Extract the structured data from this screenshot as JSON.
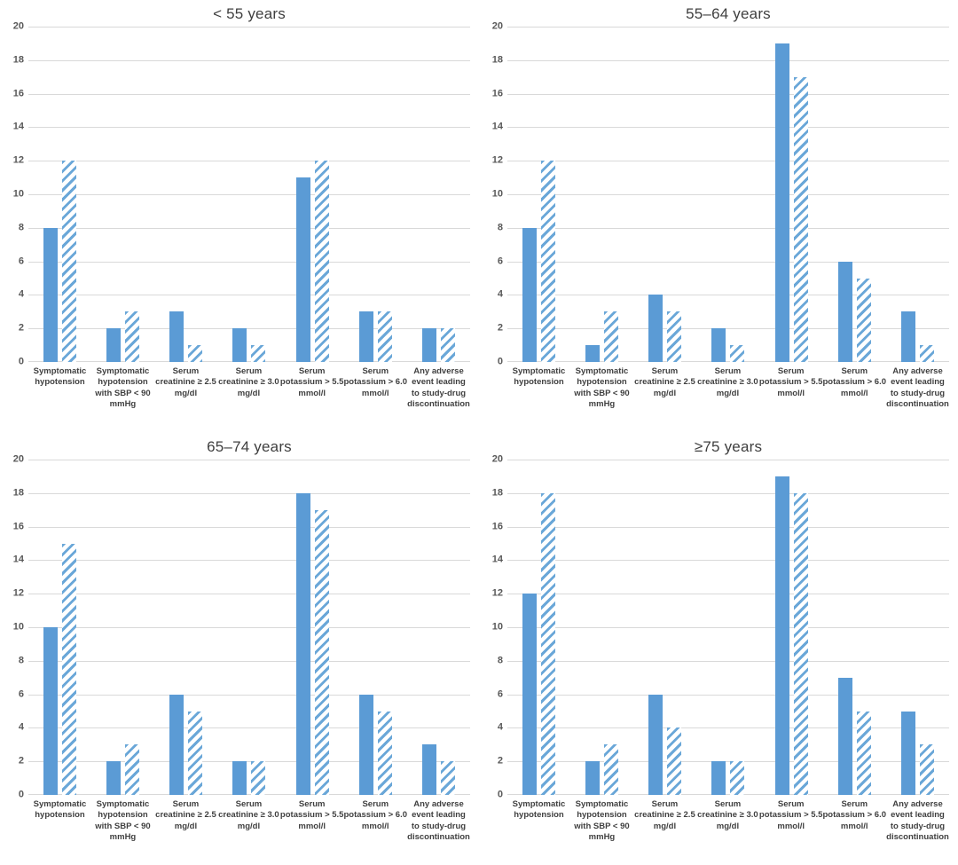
{
  "figure": {
    "description": "2x2 grid of grouped bar charts of adverse events by age group",
    "colors": {
      "solid_bar": "#5b9bd5",
      "hatch_stripe": "#6aa7d8",
      "hatch_background": "#ffffff",
      "gridline": "#d9d9d9",
      "tick_text": "#595959",
      "category_text": "#404040",
      "title_text": "#3f3f3f",
      "background": "#ffffff"
    }
  },
  "chart_data": {
    "type": "bar",
    "grid": true,
    "legend_position": "none",
    "xlabel": "",
    "ylabel": "",
    "ylim": [
      0,
      20
    ],
    "ytick_step": 2,
    "categories": [
      "Symptomatic hypotension",
      "Symptomatic hypotension with SBP < 90 mmHg",
      "Serum creatinine ≥ 2.5 mg/dl",
      "Serum creatinine ≥ 3.0 mg/dl",
      "Serum potassium > 5.5 mmol/l",
      "Serum potassium > 6.0 mmol/l",
      "Any adverse event leading to study-drug discontinuation"
    ],
    "category_label_lines": [
      [
        "Symptomatic",
        "hypotension"
      ],
      [
        "Symptomatic",
        "hypotension",
        "with SBP < 90",
        "mmHg"
      ],
      [
        "Serum",
        "creatinine ≥ 2.5",
        "mg/dl"
      ],
      [
        "Serum",
        "creatinine ≥ 3.0",
        "mg/dl"
      ],
      [
        "Serum",
        "potassium > 5.5",
        "mmol/l"
      ],
      [
        "Serum",
        "potassium > 6.0",
        "mmol/l"
      ],
      [
        "Any adverse",
        "event leading",
        "to study-drug",
        "discontinuation"
      ]
    ],
    "series_styles": [
      {
        "style": "solid",
        "description": "solid blue bar"
      },
      {
        "style": "hatched",
        "description": "blue diagonal-striped bar"
      }
    ],
    "panels": [
      {
        "title": "< 55 years",
        "series": [
          {
            "name": "solid",
            "values": [
              8,
              2,
              3,
              2,
              11,
              3,
              2
            ]
          },
          {
            "name": "hatched",
            "values": [
              12,
              3,
              1,
              1,
              12,
              3,
              2
            ]
          }
        ]
      },
      {
        "title": "55–64 years",
        "series": [
          {
            "name": "solid",
            "values": [
              8,
              1,
              4,
              2,
              19,
              6,
              3
            ]
          },
          {
            "name": "hatched",
            "values": [
              12,
              3,
              3,
              1,
              17,
              5,
              1
            ]
          }
        ]
      },
      {
        "title": "65–74 years",
        "series": [
          {
            "name": "solid",
            "values": [
              10,
              2,
              6,
              2,
              18,
              6,
              3
            ]
          },
          {
            "name": "hatched",
            "values": [
              15,
              3,
              5,
              2,
              17,
              5,
              2
            ]
          }
        ]
      },
      {
        "title": "≥75 years",
        "series": [
          {
            "name": "solid",
            "values": [
              12,
              2,
              6,
              2,
              19,
              7,
              5
            ]
          },
          {
            "name": "hatched",
            "values": [
              18,
              3,
              4,
              2,
              18,
              5,
              3
            ]
          }
        ]
      }
    ]
  }
}
